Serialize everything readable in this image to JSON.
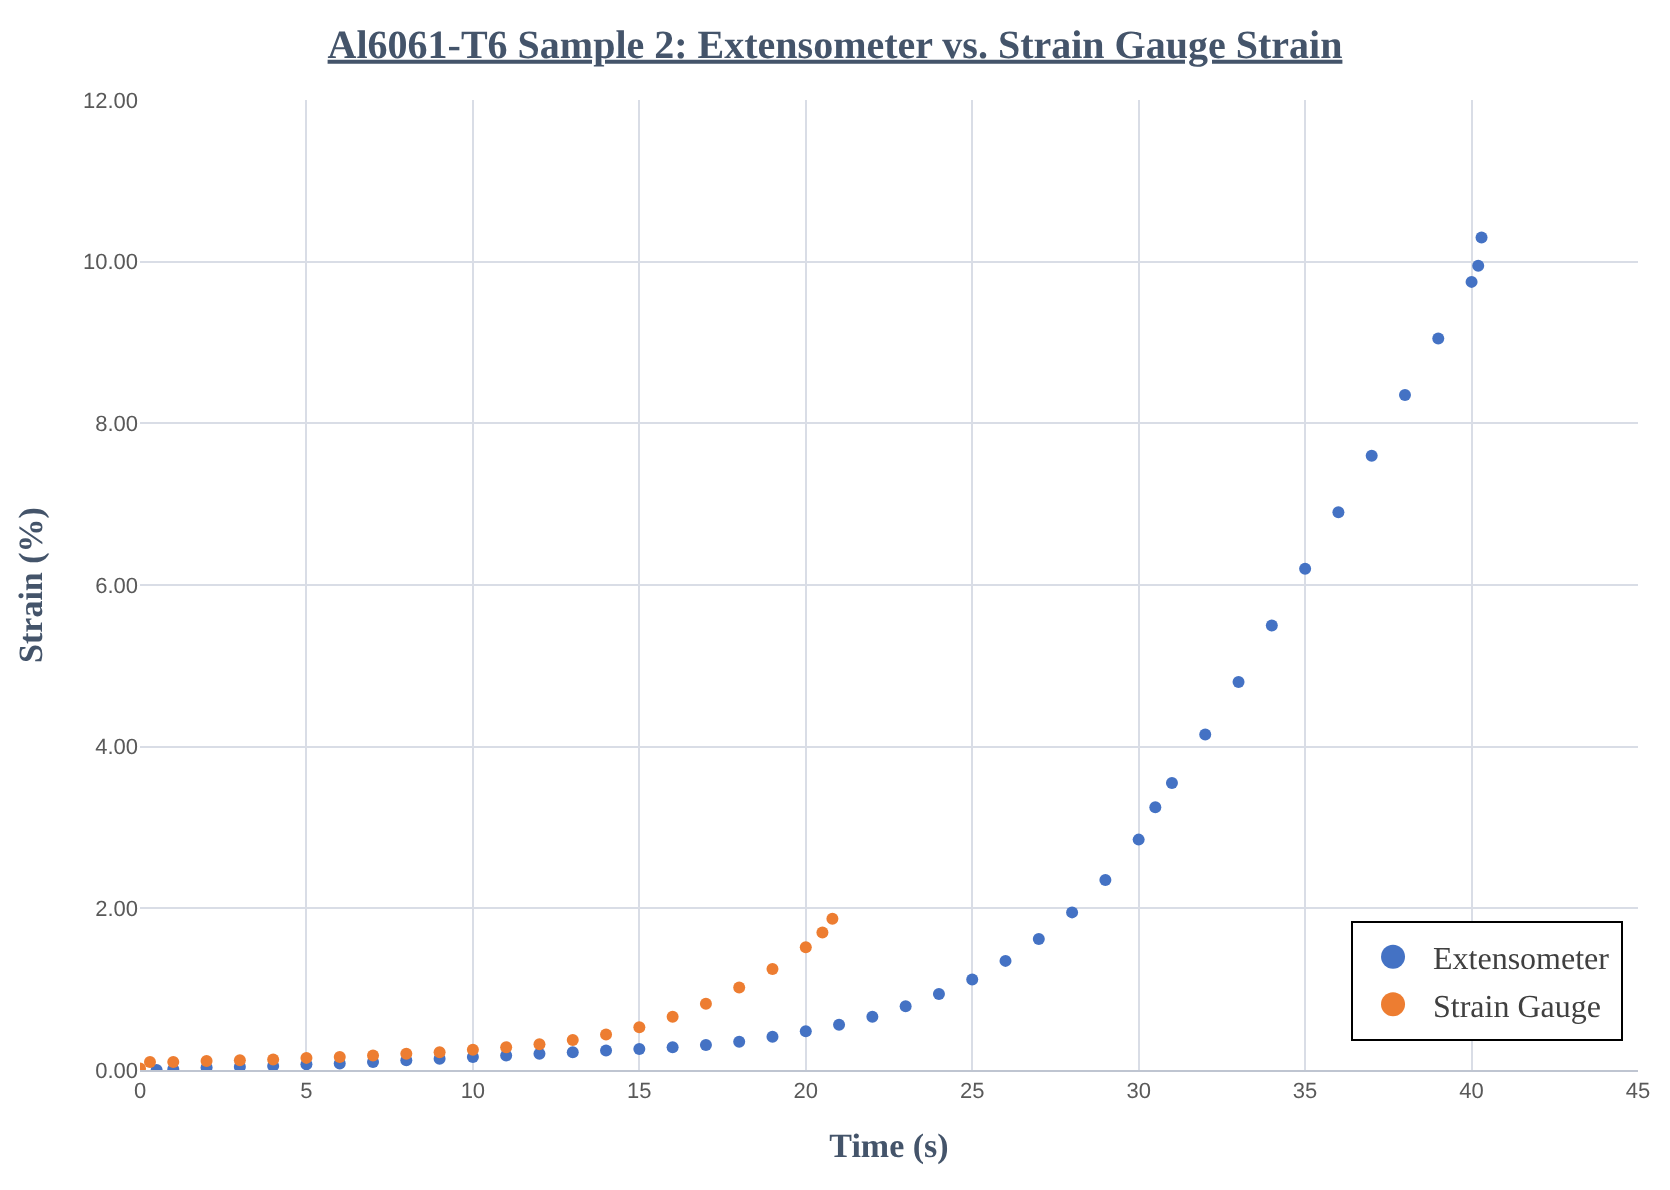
{
  "chart_data": {
    "type": "scatter",
    "title": "Al6061-T6 Sample 2: Extensometer vs. Strain Gauge Strain",
    "xlabel": "Time (s)",
    "ylabel": "Strain (%)",
    "series": [
      {
        "name": "Extensometer",
        "color": "#4472c4",
        "x": [
          0.5,
          1,
          2,
          3,
          4,
          5,
          6,
          7,
          8,
          9,
          10,
          11,
          12,
          13,
          14,
          15,
          16,
          17,
          18,
          19,
          20,
          21,
          22,
          23,
          24,
          25,
          26,
          27,
          28,
          29,
          30,
          30.5,
          31,
          32,
          33,
          34,
          35,
          36,
          37,
          38,
          39,
          40,
          40.2,
          40.3
        ],
        "values": [
          0.0,
          0.01,
          0.03,
          0.04,
          0.05,
          0.07,
          0.08,
          0.1,
          0.12,
          0.14,
          0.16,
          0.18,
          0.2,
          0.22,
          0.24,
          0.26,
          0.28,
          0.31,
          0.35,
          0.41,
          0.48,
          0.56,
          0.66,
          0.79,
          0.94,
          1.12,
          1.35,
          1.62,
          1.95,
          2.35,
          2.85,
          3.25,
          3.55,
          4.15,
          4.8,
          5.5,
          6.2,
          6.9,
          7.6,
          8.35,
          9.05,
          9.75,
          9.95,
          10.3
        ]
      },
      {
        "name": "Strain Gauge",
        "color": "#ed7d31",
        "x": [
          0,
          0.3,
          1,
          2,
          3,
          4,
          5,
          6,
          7,
          8,
          9,
          10,
          11,
          12,
          13,
          14,
          15,
          16,
          17,
          18,
          19,
          20,
          20.5,
          20.8
        ],
        "values": [
          0.02,
          0.1,
          0.1,
          0.11,
          0.12,
          0.13,
          0.15,
          0.16,
          0.18,
          0.2,
          0.22,
          0.25,
          0.28,
          0.32,
          0.37,
          0.44,
          0.53,
          0.66,
          0.82,
          1.02,
          1.25,
          1.52,
          1.7,
          1.87
        ]
      }
    ],
    "xlim": [
      0,
      45
    ],
    "xticks": [
      0,
      5,
      10,
      15,
      20,
      25,
      30,
      35,
      40,
      45
    ],
    "ylim": [
      0,
      12
    ],
    "yticks": [
      {
        "value": 0,
        "label": "0.00"
      },
      {
        "value": 2,
        "label": "2.00"
      },
      {
        "value": 4,
        "label": "4.00"
      },
      {
        "value": 6,
        "label": "6.00"
      },
      {
        "value": 8,
        "label": "8.00"
      },
      {
        "value": 10,
        "label": "10.00"
      },
      {
        "value": 12,
        "label": "12.00"
      }
    ],
    "grid": true,
    "legend": "bottom right",
    "marker": "circle"
  }
}
